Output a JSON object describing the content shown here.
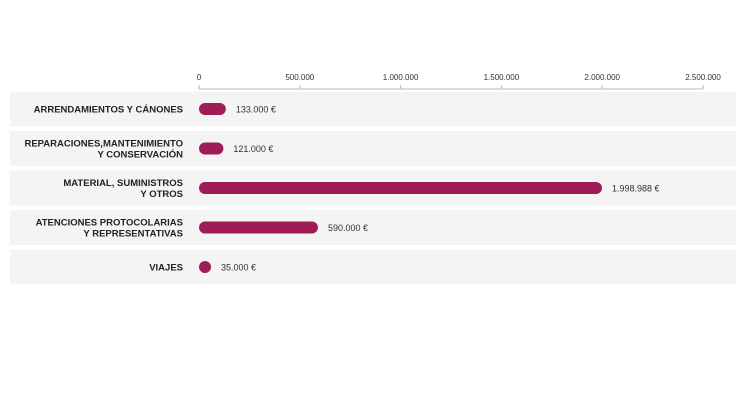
{
  "chart_data": {
    "type": "bar",
    "orientation": "horizontal",
    "categories": [
      [
        "ARRENDAMIENTOS Y CÁNONES"
      ],
      [
        "REPARACIONES,MANTENIMIENTO",
        "Y CONSERVACIÓN"
      ],
      [
        "MATERIAL, SUMINISTROS",
        "Y OTROS"
      ],
      [
        "ATENCIONES PROTOCOLARIAS",
        "Y REPRESENTATIVAS"
      ],
      [
        "VIAJES"
      ]
    ],
    "values": [
      133000,
      121000,
      1998988,
      590000,
      35000
    ],
    "value_labels": [
      "133.000 €",
      "121.000 €",
      "1.998.988 €",
      "590.000 €",
      "35.000 €"
    ],
    "xticks": [
      0,
      500000,
      1000000,
      1500000,
      2000000,
      2500000
    ],
    "xtick_labels": [
      "0",
      "500.000",
      "1.000.000",
      "1.500.000",
      "2.000.000",
      "2.500.000"
    ],
    "xlim": [
      0,
      2500000
    ],
    "axis_position": "top",
    "grid": false,
    "legend": "none",
    "bar_color": "#a01c56"
  }
}
